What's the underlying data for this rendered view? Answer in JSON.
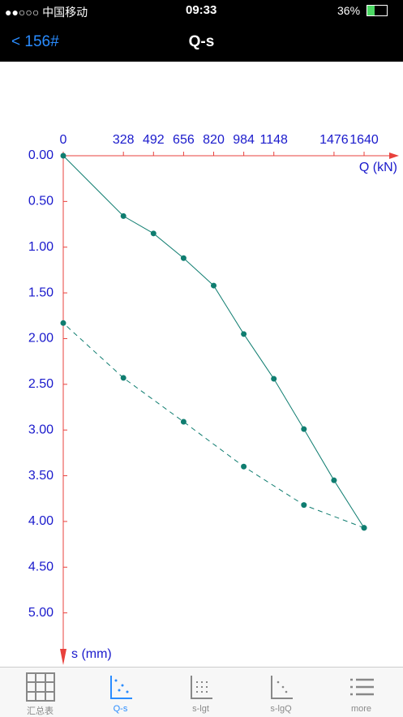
{
  "status_bar": {
    "carrier": "●●○○○ 中国移动",
    "time": "09:33",
    "battery": "36%"
  },
  "nav": {
    "back": "< 156#",
    "title": "Q-s"
  },
  "tabs": [
    "汇总表",
    "Q-s",
    "s-lgt",
    "s-lgQ",
    "more"
  ],
  "chart_data": {
    "type": "line",
    "x_label": "Q (kN)",
    "y_label": "s (mm)",
    "xlim": [
      0,
      1830
    ],
    "xticks": [
      0,
      328,
      492,
      656,
      820,
      984,
      1148,
      1476,
      1640
    ],
    "ylim": [
      0,
      5.5
    ],
    "y_reversed": true,
    "yticks": [
      {
        "value": 0,
        "label": "0.00"
      },
      {
        "value": 0.5,
        "label": "0.50"
      },
      {
        "value": 1,
        "label": "1.00"
      },
      {
        "value": 1.5,
        "label": "1.50"
      },
      {
        "value": 2,
        "label": "2.00"
      },
      {
        "value": 2.5,
        "label": "2.50"
      },
      {
        "value": 3,
        "label": "3.00"
      },
      {
        "value": 3.5,
        "label": "3.50"
      },
      {
        "value": 4,
        "label": "4.00"
      },
      {
        "value": 4.5,
        "label": "4.50"
      },
      {
        "value": 5,
        "label": "5.00"
      }
    ],
    "axis_color": "#e8413c",
    "tick_label_color": "#1a1acc",
    "series": [
      {
        "color": "#0f7d70",
        "dashed": false,
        "x": [
          0,
          328,
          492,
          656,
          820,
          984,
          1148,
          1312,
          1476,
          1640
        ],
        "values": [
          0,
          0.66,
          0.85,
          1.12,
          1.42,
          1.95,
          2.44,
          2.99,
          3.55,
          4.07
        ]
      },
      {
        "color": "#0f7d70",
        "dashed": true,
        "x": [
          1640,
          1312,
          984,
          656,
          328,
          0
        ],
        "values": [
          4.07,
          3.82,
          3.4,
          2.91,
          2.43,
          1.83
        ]
      }
    ]
  }
}
